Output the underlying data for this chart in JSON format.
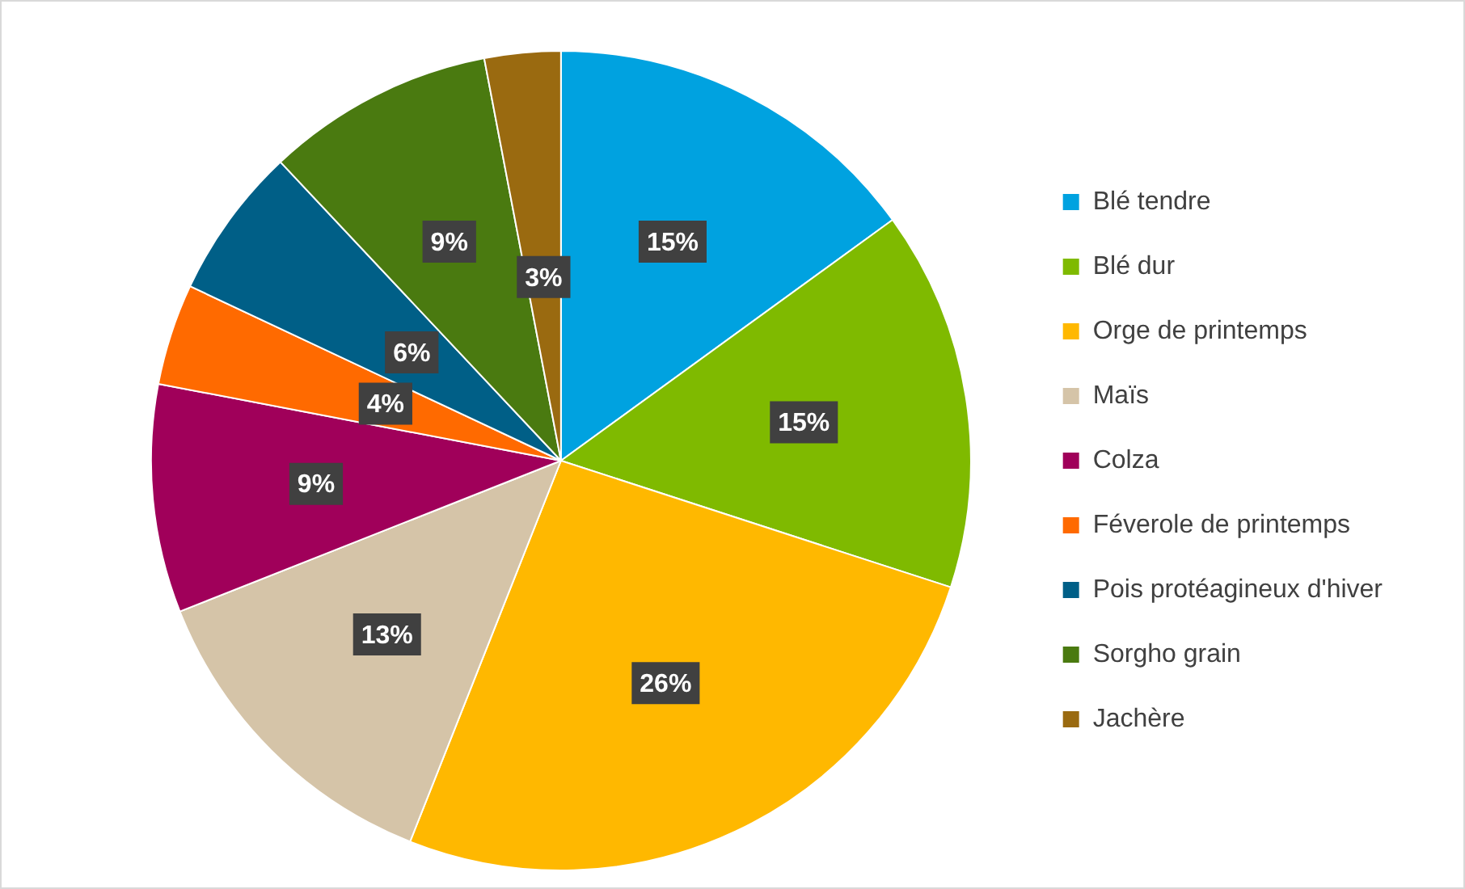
{
  "chart_data": {
    "type": "pie",
    "categories": [
      "Blé tendre",
      "Blé dur",
      "Orge de printemps",
      "Maïs",
      "Colza",
      "Féverole de printemps",
      "Pois protéagineux d'hiver",
      "Sorgho grain",
      "Jachère"
    ],
    "values": [
      15,
      15,
      26,
      13,
      9,
      4,
      6,
      9,
      3
    ],
    "value_labels": [
      "15%",
      "15%",
      "26%",
      "13%",
      "9%",
      "4%",
      "6%",
      "9%",
      "3%"
    ],
    "colors": [
      "#00a2e0",
      "#7fba00",
      "#ffb800",
      "#d5c4a8",
      "#a0005a",
      "#ff6a00",
      "#005f87",
      "#4a7a10",
      "#9a6a10"
    ],
    "legend": "right"
  }
}
